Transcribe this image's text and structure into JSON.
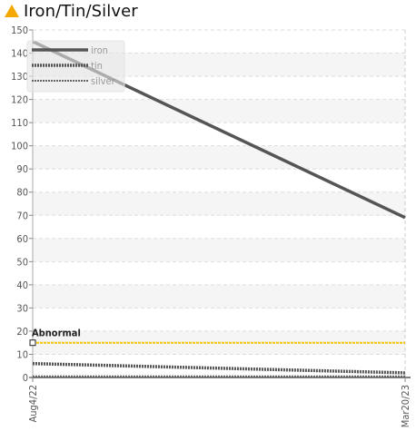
{
  "header": {
    "title": "Iron/Tin/Silver",
    "warning_icon": "warning-triangle-icon",
    "warning_color": "#f5a800"
  },
  "chart_data": {
    "type": "line",
    "title": "Iron/Tin/Silver",
    "xlabel": "",
    "ylabel": "",
    "x": [
      "Aug4/22",
      "Mar20/23"
    ],
    "ylim": [
      0,
      150
    ],
    "y_ticks": [
      0,
      10,
      20,
      30,
      40,
      50,
      60,
      70,
      80,
      90,
      100,
      110,
      120,
      130,
      140,
      150
    ],
    "grid": true,
    "legend": "top-left",
    "series": [
      {
        "name": "iron",
        "values": [
          145,
          69
        ],
        "color": "#555555",
        "style": "solid"
      },
      {
        "name": "tin",
        "values": [
          6,
          2
        ],
        "color": "#555555",
        "style": "dotted-thick"
      },
      {
        "name": "silver",
        "values": [
          0.5,
          0.5
        ],
        "color": "#666666",
        "style": "dotted-thin"
      }
    ],
    "threshold": {
      "label": "Abnormal",
      "value": 15,
      "color": "#f5c400"
    }
  }
}
